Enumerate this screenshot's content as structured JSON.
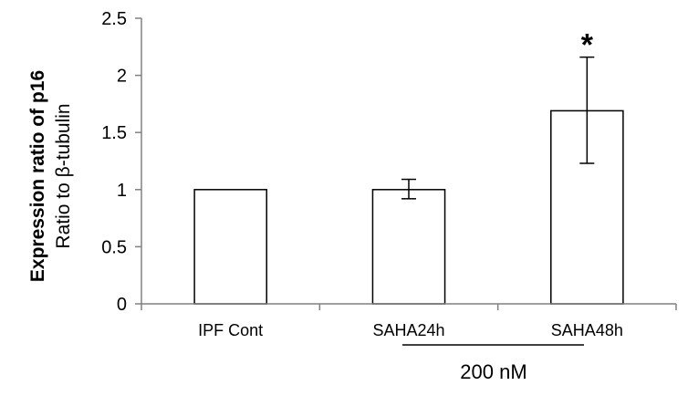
{
  "chart_data": {
    "type": "bar",
    "title": "",
    "ylabel_primary": "Expression ratio of  p16",
    "ylabel_secondary": "Ratio  to β-tubulin",
    "xlabel": "",
    "ylim": [
      0,
      2.5
    ],
    "yticks": [
      "0",
      "0.5",
      "1",
      "1.5",
      "2",
      "2.5"
    ],
    "categories": [
      "IPF Cont",
      "SAHA24h",
      "SAHA48h"
    ],
    "values": [
      1.0,
      1.0,
      1.69
    ],
    "error_lower": [
      1.0,
      0.92,
      1.23
    ],
    "error_upper": [
      1.0,
      1.09,
      2.16
    ],
    "significance": [
      "",
      "",
      "*"
    ],
    "bar_fill": "#ffffff",
    "bar_stroke": "#000000",
    "bracket_label": "200 nM",
    "grid": false,
    "legend": "none"
  }
}
